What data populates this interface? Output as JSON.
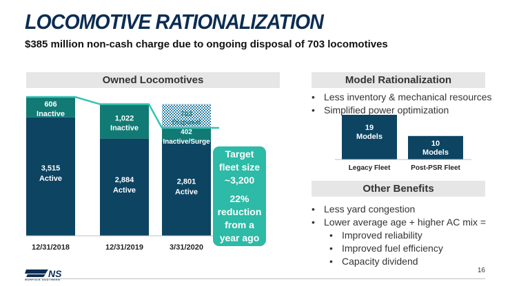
{
  "header": {
    "title": "LOCOMOTIVE RATIONALIZATION",
    "subtitle": "$385 million non-cash charge due to ongoing disposal of 703 locomotives"
  },
  "owned_panel": {
    "title": "Owned Locomotives"
  },
  "model_panel": {
    "title": "Model Rationalization",
    "bullets": [
      "Less inventory & mechanical resources",
      "Simplified power optimization"
    ]
  },
  "other_panel": {
    "title": "Other Benefits",
    "bullets": [
      "Less yard congestion",
      "Lower average age + higher AC mix ="
    ],
    "sub_bullets": [
      "Improved reliability",
      "Improved fuel efficiency",
      "Capacity dividend"
    ]
  },
  "callout": {
    "line1": "Target\nfleet size\n~3,200",
    "line2": "22%\nreduction\nfrom a\nyear ago"
  },
  "colors": {
    "navy": "#0d4462",
    "teal": "#117a74",
    "hatch": "#2d7fa8",
    "callout": "#2dbaa7",
    "connector": "#37c1b0"
  },
  "chart_data": [
    {
      "type": "bar",
      "stacked": true,
      "title": "Owned Locomotives",
      "categories": [
        "12/31/2018",
        "12/31/2019",
        "3/31/2020"
      ],
      "series": [
        {
          "name": "Active",
          "values": [
            3515,
            2884,
            2801
          ],
          "labels": [
            "3,515\nActive",
            "2,884\nActive",
            "2,801\nActive"
          ]
        },
        {
          "name": "Inactive",
          "values": [
            606,
            1022,
            402
          ],
          "labels": [
            "606\nInactive",
            "1,022\nInactive",
            "402\nInactive/Surge"
          ]
        },
        {
          "name": "Disposal",
          "values": [
            0,
            0,
            703
          ],
          "labels": [
            "",
            "",
            "703\nDisposal"
          ]
        }
      ],
      "ylim": [
        0,
        4121
      ]
    },
    {
      "type": "bar",
      "title": "Model Rationalization",
      "categories": [
        "Legacy Fleet",
        "Post-PSR Fleet"
      ],
      "values": [
        19,
        10
      ],
      "labels": [
        "19\nModels",
        "10\nModels"
      ],
      "ylim": [
        0,
        19
      ]
    }
  ],
  "footer": {
    "page_number": "16",
    "logo_text": "NORFOLK SOUTHERN"
  }
}
